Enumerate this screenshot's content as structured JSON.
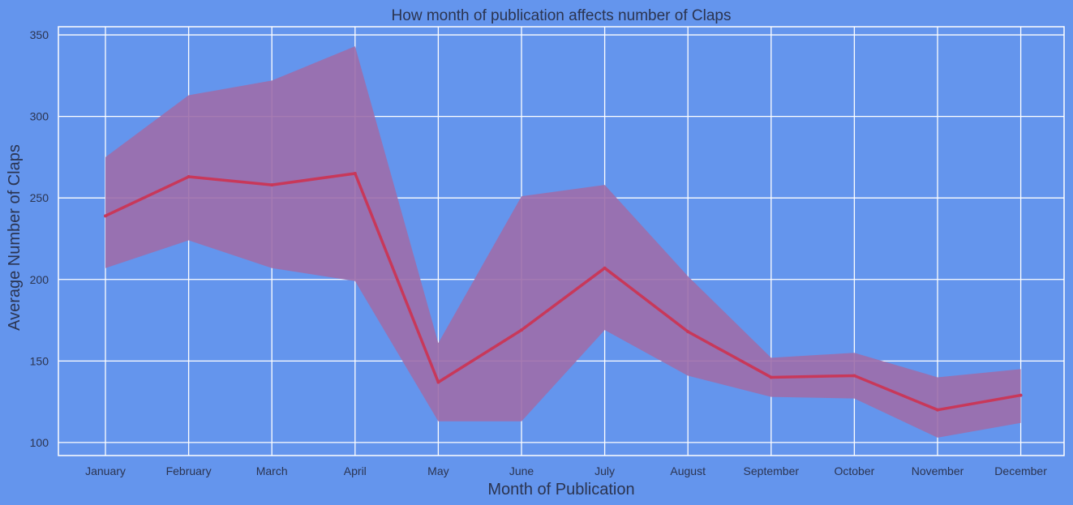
{
  "chart_data": {
    "type": "line",
    "title": "How month of publication affects number of Claps",
    "xlabel": "Month of Publication",
    "ylabel": "Average Number of Claps",
    "categories": [
      "January",
      "February",
      "March",
      "April",
      "May",
      "June",
      "July",
      "August",
      "September",
      "October",
      "November",
      "December"
    ],
    "series": [
      {
        "values": [
          239,
          263,
          258,
          265,
          137,
          169,
          207,
          168,
          140,
          141,
          120,
          129
        ],
        "ci_upper": [
          275,
          313,
          322,
          343,
          161,
          251,
          258,
          202,
          152,
          155,
          140,
          145
        ],
        "ci_lower": [
          207,
          224,
          207,
          199,
          113,
          113,
          169,
          141,
          128,
          127,
          103,
          112
        ]
      }
    ],
    "yticks": [
      100,
      150,
      200,
      250,
      300,
      350
    ],
    "ylim": [
      92,
      355
    ],
    "grid": true,
    "colors": {
      "background": "#6495ED",
      "line": "#C8385A",
      "band": "#9D6DAA",
      "grid": "#FFFFFF",
      "text": "#2B3450"
    }
  }
}
